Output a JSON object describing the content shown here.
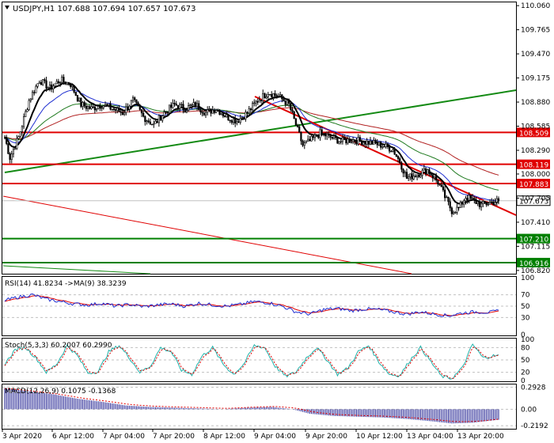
{
  "chart_data": {
    "type": "candlestick",
    "symbol": "USDJPY,H1",
    "ohlc": {
      "open": "107.688",
      "high": "107.694",
      "low": "107.657",
      "close": "107.673"
    },
    "price_axis": {
      "ticks": [
        "110.060",
        "109.765",
        "109.470",
        "109.175",
        "108.880",
        "108.585",
        "108.290",
        "108.000",
        "107.705",
        "107.410",
        "107.115",
        "106.820"
      ],
      "range": [
        106.78,
        110.1
      ]
    },
    "levels": [
      {
        "label": "108.509",
        "value": 108.509,
        "color": "#e00000"
      },
      {
        "label": "108.119",
        "value": 108.119,
        "color": "#e00000"
      },
      {
        "label": "107.883",
        "value": 107.883,
        "color": "#e00000"
      },
      {
        "label": "107.210",
        "value": 107.21,
        "color": "#008000"
      },
      {
        "label": "106.916",
        "value": 106.916,
        "color": "#008000"
      }
    ],
    "current_price": {
      "label": "107.673",
      "value": 107.673
    },
    "time_axis": [
      "3 Apr 2020",
      "6 Apr 12:00",
      "7 Apr 04:00",
      "7 Apr 20:00",
      "8 Apr 12:00",
      "9 Apr 04:00",
      "9 Apr 20:00",
      "10 Apr 12:00",
      "13 Apr 04:00",
      "13 Apr 20:00"
    ],
    "price_anchors": [
      [
        0,
        108.45
      ],
      [
        3,
        108.2
      ],
      [
        8,
        108.45
      ],
      [
        14,
        108.9
      ],
      [
        20,
        109.15
      ],
      [
        26,
        109.05
      ],
      [
        32,
        109.15
      ],
      [
        38,
        109.1
      ],
      [
        44,
        108.85
      ],
      [
        50,
        108.8
      ],
      [
        56,
        108.85
      ],
      [
        62,
        108.8
      ],
      [
        68,
        108.75
      ],
      [
        74,
        108.9
      ],
      [
        80,
        108.7
      ],
      [
        86,
        108.6
      ],
      [
        92,
        108.75
      ],
      [
        98,
        108.85
      ],
      [
        104,
        108.8
      ],
      [
        110,
        108.85
      ],
      [
        116,
        108.75
      ],
      [
        122,
        108.8
      ],
      [
        128,
        108.7
      ],
      [
        134,
        108.65
      ],
      [
        140,
        108.75
      ],
      [
        146,
        108.9
      ],
      [
        152,
        109.0
      ],
      [
        158,
        108.95
      ],
      [
        164,
        108.85
      ],
      [
        168,
        108.6
      ],
      [
        172,
        108.35
      ],
      [
        176,
        108.4
      ],
      [
        182,
        108.5
      ],
      [
        188,
        108.45
      ],
      [
        194,
        108.4
      ],
      [
        200,
        108.42
      ],
      [
        206,
        108.4
      ],
      [
        212,
        108.38
      ],
      [
        218,
        108.35
      ],
      [
        224,
        108.3
      ],
      [
        228,
        108.15
      ],
      [
        232,
        107.95
      ],
      [
        238,
        108.0
      ],
      [
        244,
        108.05
      ],
      [
        250,
        107.9
      ],
      [
        254,
        107.72
      ],
      [
        258,
        107.55
      ],
      [
        262,
        107.58
      ],
      [
        266,
        107.72
      ],
      [
        270,
        107.68
      ],
      [
        275,
        107.62
      ],
      [
        280,
        107.65
      ],
      [
        285,
        107.673
      ]
    ],
    "indicators": {
      "rsi": {
        "label": "RSI(14) 41.8234 ->MA(9) 38.3239",
        "ticks": [
          "100",
          "70",
          "50",
          "30",
          "0"
        ],
        "range": [
          0,
          100
        ],
        "anchors": [
          [
            0,
            60
          ],
          [
            8,
            66
          ],
          [
            16,
            70
          ],
          [
            24,
            62
          ],
          [
            32,
            58
          ],
          [
            40,
            54
          ],
          [
            48,
            52
          ],
          [
            56,
            55
          ],
          [
            64,
            50
          ],
          [
            72,
            53
          ],
          [
            80,
            49
          ],
          [
            88,
            52
          ],
          [
            96,
            54
          ],
          [
            104,
            50
          ],
          [
            112,
            55
          ],
          [
            120,
            52
          ],
          [
            128,
            50
          ],
          [
            136,
            53
          ],
          [
            144,
            58
          ],
          [
            152,
            56
          ],
          [
            160,
            50
          ],
          [
            168,
            40
          ],
          [
            176,
            36
          ],
          [
            184,
            44
          ],
          [
            192,
            46
          ],
          [
            200,
            42
          ],
          [
            208,
            45
          ],
          [
            216,
            44
          ],
          [
            224,
            40
          ],
          [
            232,
            36
          ],
          [
            240,
            40
          ],
          [
            248,
            36
          ],
          [
            256,
            33
          ],
          [
            264,
            38
          ],
          [
            272,
            40
          ],
          [
            280,
            39
          ],
          [
            285,
            41.8
          ]
        ]
      },
      "stoch": {
        "label": "Stoch(5,3,3) 60.2007 60.2990",
        "ticks": [
          "100",
          "80",
          "50",
          "20",
          "0"
        ],
        "range": [
          0,
          100
        ],
        "anchors": [
          [
            0,
            40
          ],
          [
            6,
            75
          ],
          [
            12,
            80
          ],
          [
            18,
            55
          ],
          [
            24,
            20
          ],
          [
            30,
            40
          ],
          [
            36,
            85
          ],
          [
            42,
            60
          ],
          [
            48,
            18
          ],
          [
            54,
            22
          ],
          [
            60,
            70
          ],
          [
            66,
            85
          ],
          [
            72,
            55
          ],
          [
            78,
            20
          ],
          [
            84,
            35
          ],
          [
            90,
            80
          ],
          [
            96,
            70
          ],
          [
            102,
            25
          ],
          [
            108,
            15
          ],
          [
            114,
            60
          ],
          [
            120,
            80
          ],
          [
            126,
            40
          ],
          [
            132,
            15
          ],
          [
            138,
            40
          ],
          [
            144,
            85
          ],
          [
            150,
            80
          ],
          [
            156,
            35
          ],
          [
            162,
            10
          ],
          [
            168,
            20
          ],
          [
            174,
            55
          ],
          [
            180,
            80
          ],
          [
            186,
            50
          ],
          [
            192,
            15
          ],
          [
            198,
            30
          ],
          [
            204,
            70
          ],
          [
            210,
            85
          ],
          [
            216,
            45
          ],
          [
            222,
            15
          ],
          [
            228,
            12
          ],
          [
            234,
            50
          ],
          [
            240,
            80
          ],
          [
            246,
            45
          ],
          [
            252,
            10
          ],
          [
            258,
            5
          ],
          [
            264,
            30
          ],
          [
            270,
            88
          ],
          [
            276,
            55
          ],
          [
            282,
            60
          ],
          [
            285,
            60.2
          ]
        ]
      },
      "macd": {
        "label": "MACD(12,26,9) 0.1075 -0.1368",
        "ticks": [
          "0.2928",
          "0.00",
          "-0.2192"
        ],
        "range": [
          -0.25,
          0.32
        ],
        "anchors": [
          [
            0,
            0.28
          ],
          [
            14,
            0.24
          ],
          [
            28,
            0.2
          ],
          [
            42,
            0.14
          ],
          [
            56,
            0.1
          ],
          [
            70,
            0.05
          ],
          [
            84,
            0.03
          ],
          [
            98,
            0.02
          ],
          [
            112,
            0.01
          ],
          [
            126,
            0.0
          ],
          [
            140,
            0.02
          ],
          [
            154,
            0.03
          ],
          [
            166,
            0.0
          ],
          [
            176,
            -0.06
          ],
          [
            190,
            -0.09
          ],
          [
            204,
            -0.1
          ],
          [
            218,
            -0.11
          ],
          [
            232,
            -0.13
          ],
          [
            246,
            -0.16
          ],
          [
            258,
            -0.19
          ],
          [
            270,
            -0.18
          ],
          [
            285,
            -0.14
          ]
        ]
      }
    }
  }
}
